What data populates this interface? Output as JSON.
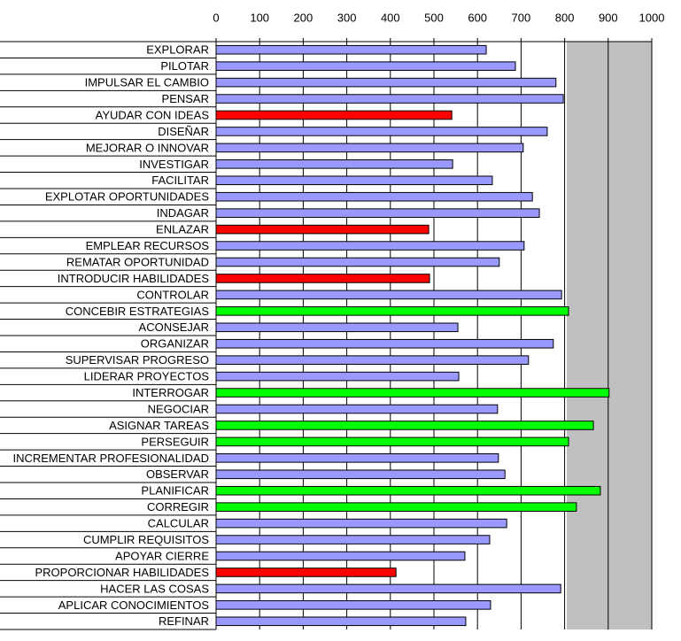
{
  "chart_data": {
    "type": "bar",
    "orientation": "horizontal",
    "categories": [
      "EXPLORAR",
      "PILOTAR",
      "IMPULSAR EL CAMBIO",
      "PENSAR",
      "AYUDAR CON IDEAS",
      "DISEÑAR",
      "MEJORAR O INNOVAR",
      "INVESTIGAR",
      "FACILITAR",
      "EXPLOTAR OPORTUNIDADES",
      "INDAGAR",
      "ENLAZAR",
      "EMPLEAR RECURSOS",
      "REMATAR OPORTUNIDAD",
      "INTRODUCIR  HABILIDADES",
      "CONTROLAR",
      "CONCEBIR ESTRATEGIAS",
      "ACONSEJAR",
      "ORGANIZAR",
      "SUPERVISAR PROGRESO",
      "LIDERAR PROYECTOS",
      "INTERROGAR",
      "NEGOCIAR",
      "ASIGNAR TAREAS",
      "PERSEGUIR",
      "INCREMENTAR PROFESIONALIDAD",
      "OBSERVAR",
      "PLANIFICAR",
      "CORREGIR",
      "CALCULAR",
      "CUMPLIR REQUISITOS",
      "APOYAR CIERRE",
      "PROPORCIONAR HABILIDADES",
      "HACER LAS COSAS",
      "APLICAR CONOCIMIENTOS",
      "REFINAR"
    ],
    "values": [
      620,
      687,
      780,
      797,
      541,
      760,
      705,
      543,
      634,
      726,
      742,
      488,
      707,
      650,
      490,
      793,
      809,
      555,
      774,
      717,
      557,
      902,
      646,
      866,
      809,
      648,
      663,
      882,
      827,
      667,
      628,
      571,
      413,
      791,
      630,
      573
    ],
    "colors": [
      "#9999ff",
      "#9999ff",
      "#9999ff",
      "#9999ff",
      "#ff0000",
      "#9999ff",
      "#9999ff",
      "#9999ff",
      "#9999ff",
      "#9999ff",
      "#9999ff",
      "#ff0000",
      "#9999ff",
      "#9999ff",
      "#ff0000",
      "#9999ff",
      "#00ff00",
      "#9999ff",
      "#9999ff",
      "#9999ff",
      "#9999ff",
      "#00ff00",
      "#9999ff",
      "#00ff00",
      "#00ff00",
      "#9999ff",
      "#9999ff",
      "#00ff00",
      "#00ff00",
      "#9999ff",
      "#9999ff",
      "#9999ff",
      "#ff0000",
      "#9999ff",
      "#9999ff",
      "#9999ff"
    ],
    "xlim": [
      0,
      1000
    ],
    "xticks": [
      0,
      100,
      200,
      300,
      400,
      500,
      600,
      700,
      800,
      900,
      1000
    ],
    "grid": true
  }
}
